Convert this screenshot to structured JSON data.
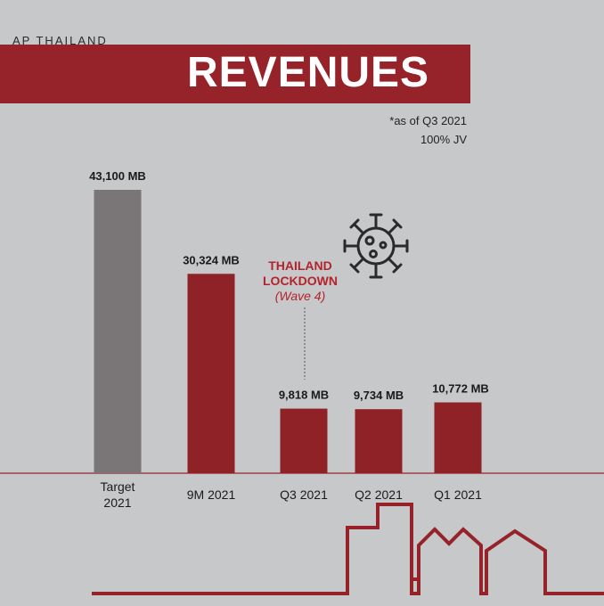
{
  "header": {
    "brand": "AP THAILAND",
    "title": "REVENUES",
    "note_line1": "*as of Q3 2021",
    "note_line2": "100% JV"
  },
  "annotation": {
    "line1": "THAILAND",
    "line2": "LOCKDOWN",
    "line3": "(Wave 4)",
    "icon": "virus-icon"
  },
  "colors": {
    "background": "#c7c8ca",
    "accent_red": "#97232a",
    "target_gray": "#7a7577",
    "lockdown_text": "#b3232b"
  },
  "chart_data": {
    "type": "bar",
    "categories": [
      [
        "Target",
        "2021"
      ],
      [
        "9M 2021"
      ],
      [
        "Q3 2021"
      ],
      [
        "Q2 2021"
      ],
      [
        "Q1 2021"
      ]
    ],
    "values": [
      43100,
      30324,
      9818,
      9734,
      10772
    ],
    "labels": [
      "43,100 MB",
      "30,324 MB",
      "9,818 MB",
      "9,734 MB",
      "10,772 MB"
    ],
    "unit": "MB",
    "bar_colors": [
      "#7a7577",
      "#8e2227",
      "#8e2227",
      "#8e2227",
      "#8e2227"
    ],
    "ylim": [
      0,
      50000
    ],
    "grid": false,
    "legend": "none"
  }
}
